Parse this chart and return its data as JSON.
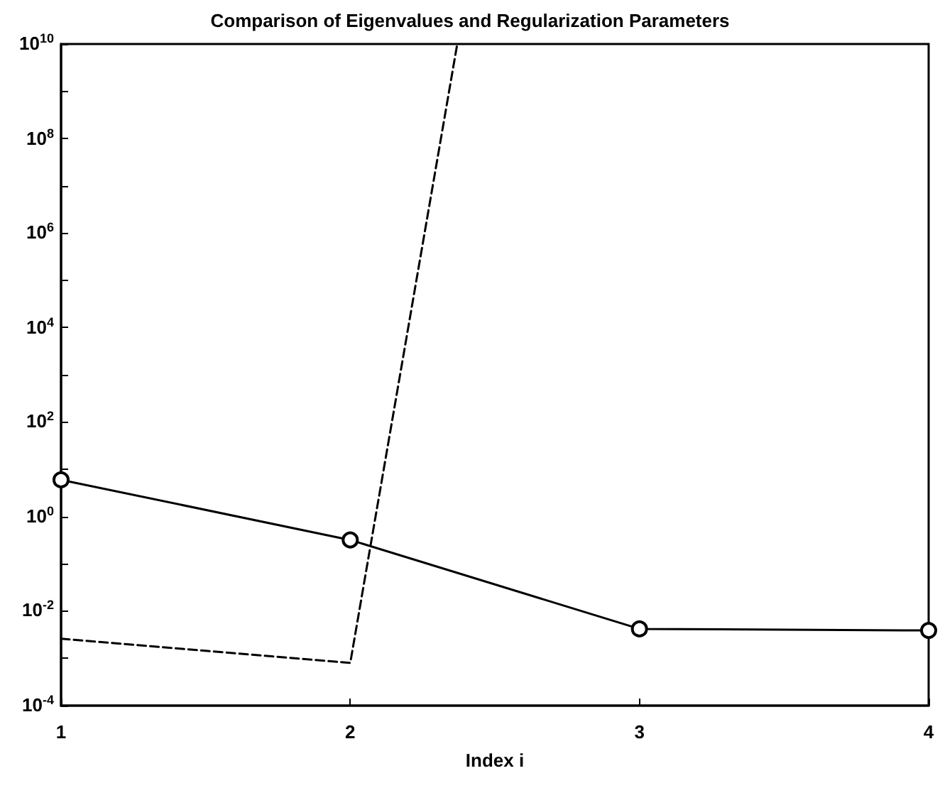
{
  "chart_data": {
    "type": "line",
    "title": "Comparison of Eigenvalues and Regularization Parameters",
    "xlabel": "Index i",
    "xlim": [
      1,
      4
    ],
    "xticks": [
      1,
      2,
      3,
      4
    ],
    "ylim": [
      0.0001,
      10000000000
    ],
    "log": true,
    "yticks": [
      {
        "value": 0.0001,
        "label": "10$^{-4}$"
      },
      {
        "value": 0.001,
        "label": null
      },
      {
        "value": 0.01,
        "label": "10$^{-2}$"
      },
      {
        "value": 0.1,
        "label": null
      },
      {
        "value": 1,
        "label": "10$^{0}$"
      },
      {
        "value": 10,
        "label": null
      },
      {
        "value": 100,
        "label": "10$^{2}$"
      },
      {
        "value": 1000,
        "label": null
      },
      {
        "value": 10000,
        "label": "10$^{4}$"
      },
      {
        "value": 100000,
        "label": null
      },
      {
        "value": 1000000,
        "label": "10$^{6}$"
      },
      {
        "value": 10000000,
        "label": null
      },
      {
        "value": 100000000,
        "label": "10$^{8}$"
      },
      {
        "value": 1000000000,
        "label": null
      },
      {
        "value": 10000000000,
        "label": "10$^{10}$"
      }
    ],
    "grid": false,
    "series": [
      {
        "color": "#000000",
        "x": [
          1,
          2,
          3,
          4
        ],
        "values": [
          6,
          0.32,
          0.0042,
          0.0039
        ],
        "marker": "circle",
        "line_style": "solid"
      },
      {
        "color": "#000000",
        "x": [
          1,
          2,
          2.37
        ],
        "values": [
          0.0026,
          0.0008,
          10000000000
        ],
        "marker": "none",
        "line_style": "dashed"
      }
    ]
  }
}
